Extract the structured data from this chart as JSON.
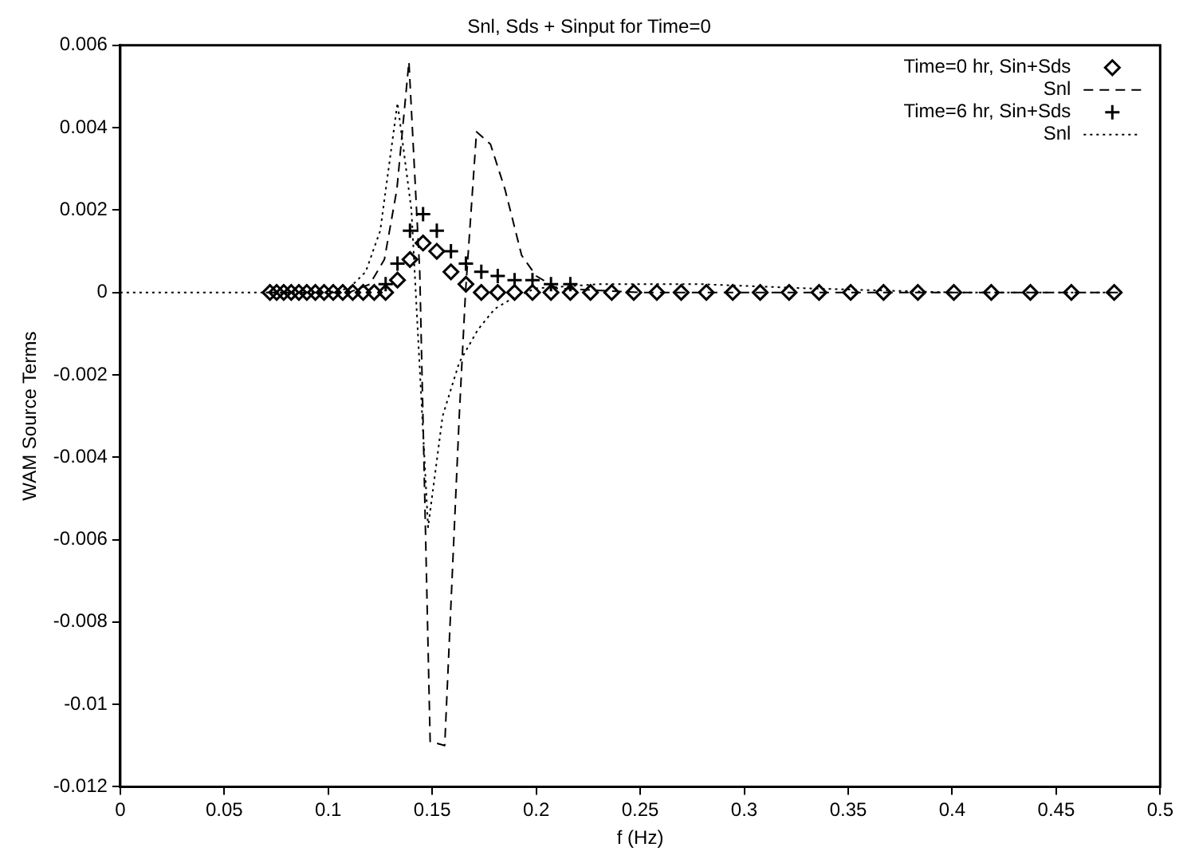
{
  "chart_data": {
    "type": "line",
    "title": "Snl, Sds + Sinput for Time=0",
    "xlabel": "f (Hz)",
    "ylabel": "WAM Source Terms",
    "xlim": [
      0,
      0.5
    ],
    "xticks": [
      0,
      0.05,
      0.1,
      0.15,
      0.2,
      0.25,
      0.3,
      0.35,
      0.4,
      0.45,
      0.5
    ],
    "ylim": [
      -0.012,
      0.006
    ],
    "yticks": [
      -0.012,
      -0.01,
      -0.008,
      -0.006,
      -0.004,
      -0.002,
      0,
      0.002,
      0.004,
      0.006
    ],
    "grid": false,
    "legend": "top right",
    "series": [
      {
        "name": "Time=0 hr, Sin+Sds",
        "type": "scatter",
        "marker": "diamond",
        "color": "#000000",
        "x": [
          0.072,
          0.0752,
          0.0786,
          0.0822,
          0.0859,
          0.0897,
          0.0938,
          0.098,
          0.1024,
          0.107,
          0.1118,
          0.1168,
          0.1221,
          0.1276,
          0.1333,
          0.1393,
          0.1456,
          0.1522,
          0.159,
          0.1662,
          0.1736,
          0.1815,
          0.1896,
          0.1982,
          0.2071,
          0.2164,
          0.2261,
          0.2363,
          0.2469,
          0.258,
          0.2697,
          0.2818,
          0.2945,
          0.3077,
          0.3216,
          0.336,
          0.3512,
          0.367,
          0.3835,
          0.4008,
          0.4188,
          0.4376,
          0.4573,
          0.4779
        ],
        "values": [
          0,
          0,
          0,
          0,
          0,
          0,
          0,
          0,
          0,
          0,
          0,
          0,
          0,
          0,
          0.0003,
          0.0008,
          0.0012,
          0.001,
          0.0005,
          0.0002,
          0,
          0,
          0,
          0,
          0,
          0,
          0,
          0,
          0,
          0,
          0,
          0,
          0,
          0,
          0,
          0,
          0,
          0,
          0,
          0,
          0,
          0,
          0,
          0
        ]
      },
      {
        "name": "Snl",
        "line_style": "dashed",
        "marker": "none",
        "color": "#000000",
        "x": [
          0.07,
          0.11,
          0.12,
          0.127,
          0.133,
          0.1388,
          0.144,
          0.149,
          0.156,
          0.163,
          0.166,
          0.1713,
          0.178,
          0.185,
          0.193,
          0.2,
          0.21,
          0.25,
          0.48
        ],
        "values": [
          0,
          0,
          0.0002,
          0.0008,
          0.0025,
          0.0056,
          0.0005,
          -0.0109,
          -0.011,
          -0.003,
          0,
          0.0039,
          0.0036,
          0.0025,
          0.0009,
          0.0004,
          0.0001,
          0,
          0
        ]
      },
      {
        "name": "Time=6 hr, Sin+Sds",
        "type": "scatter",
        "marker": "cross",
        "color": "#000000",
        "x": [
          0.1276,
          0.1333,
          0.1393,
          0.1456,
          0.1522,
          0.159,
          0.1662,
          0.1736,
          0.1815,
          0.1896,
          0.1982,
          0.2071,
          0.2164
        ],
        "values": [
          0.0002,
          0.0007,
          0.0015,
          0.0019,
          0.0015,
          0.001,
          0.0007,
          0.0005,
          0.0004,
          0.0003,
          0.0003,
          0.0002,
          0.0002
        ]
      },
      {
        "name": "Snl",
        "line_style": "dotted",
        "marker": "none",
        "color": "#000000",
        "x": [
          0,
          0.1,
          0.11,
          0.118,
          0.125,
          0.1333,
          0.14,
          0.148,
          0.155,
          0.163,
          0.172,
          0.18,
          0.19,
          0.2,
          0.23,
          0.28,
          0.33,
          0.4,
          0.48
        ],
        "values": [
          0,
          0,
          0.0001,
          0.0005,
          0.0015,
          0.0046,
          0.002,
          -0.0057,
          -0.003,
          -0.0017,
          -0.0009,
          -0.0004,
          -0.0001,
          0.0001,
          0.0002,
          0.0002,
          0.0001,
          0,
          0
        ]
      }
    ]
  }
}
